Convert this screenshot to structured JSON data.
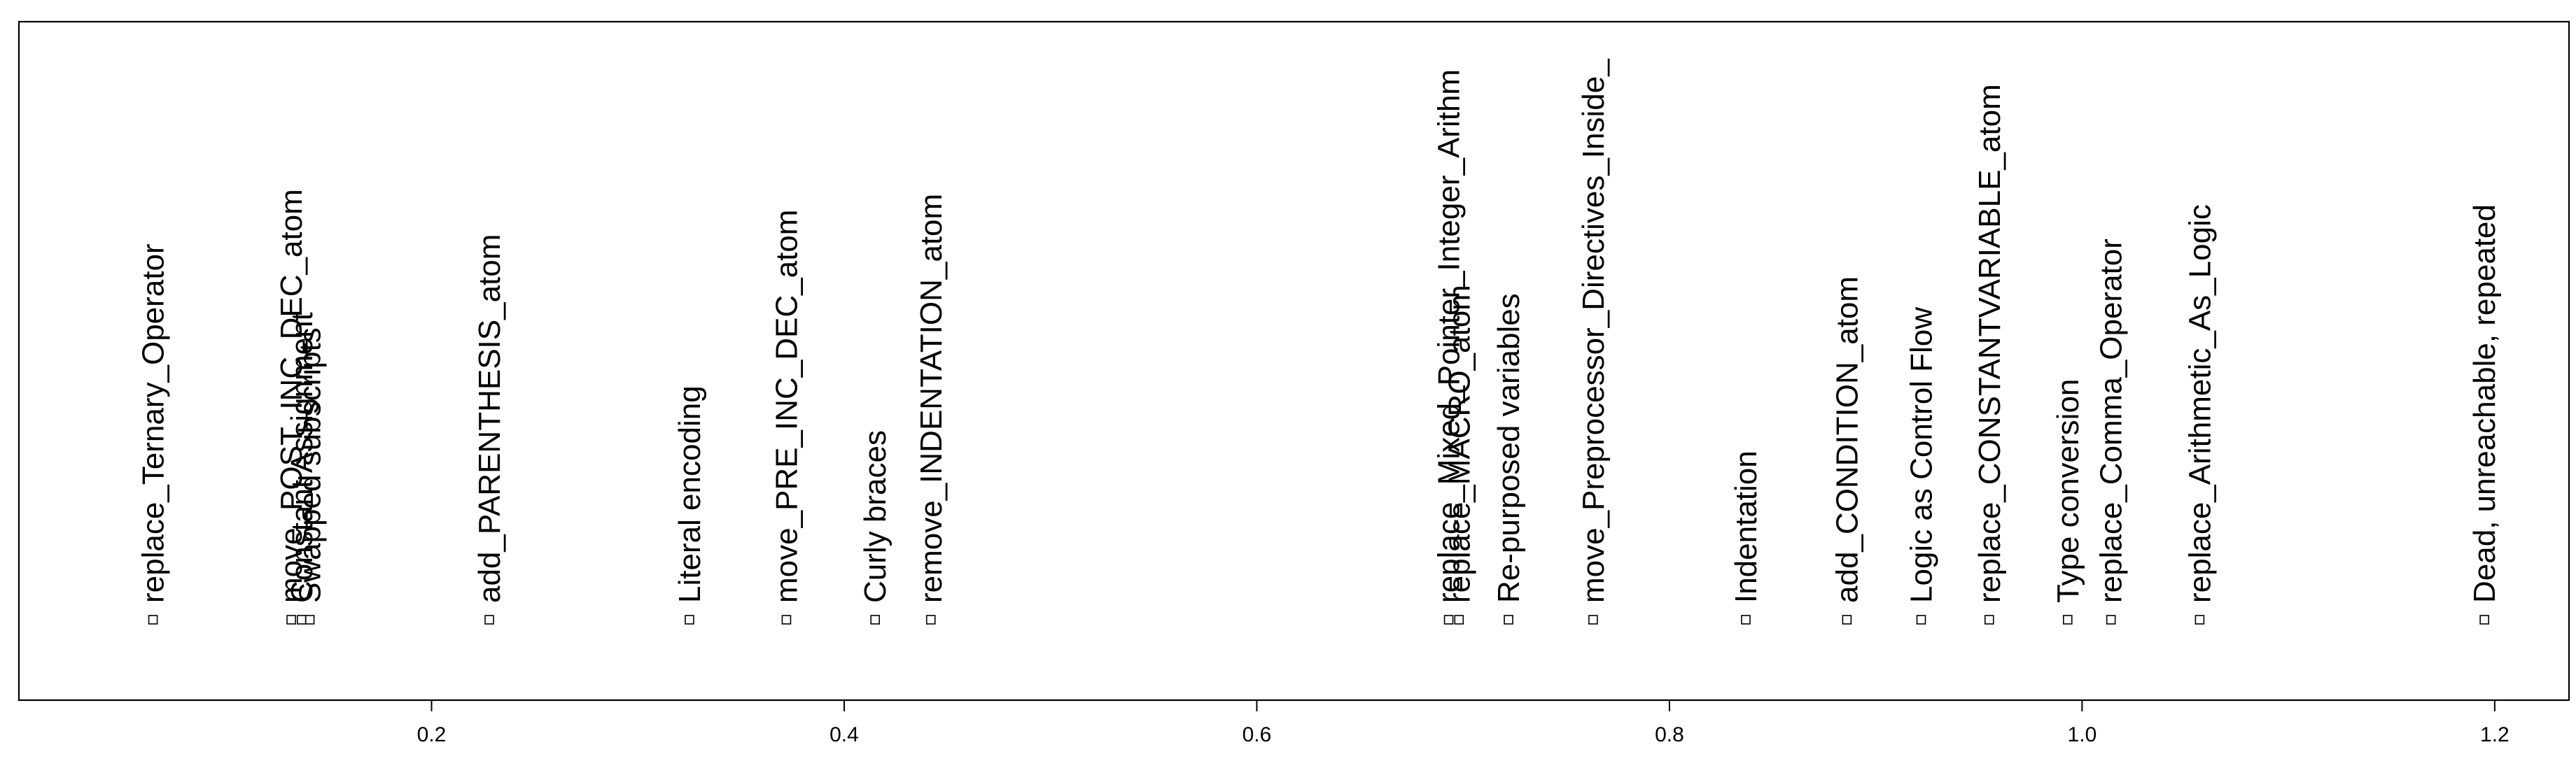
{
  "chart_data": {
    "type": "scatter",
    "title": "",
    "xlabel": "",
    "ylabel": "",
    "xlim": [
      0.0,
      1.236
    ],
    "grid": false,
    "legend": "none",
    "x_ticks": [
      {
        "value": 0.2,
        "label": "0.2"
      },
      {
        "value": 0.4,
        "label": "0.4"
      },
      {
        "value": 0.6,
        "label": "0.6"
      },
      {
        "value": 0.8,
        "label": "0.8"
      },
      {
        "value": 1.0,
        "label": "1.0"
      },
      {
        "value": 1.2,
        "label": "1.2"
      }
    ],
    "points": [
      {
        "x": 0.065,
        "label": "replace_Ternary_Operator"
      },
      {
        "x": 0.132,
        "label": "move_POST_INC_DEC_atom"
      },
      {
        "x": 0.137,
        "label": "Constant Assignment"
      },
      {
        "x": 0.141,
        "label": "Swapped subscripts"
      },
      {
        "x": 0.228,
        "label": "add_PARENTHESIS_atom"
      },
      {
        "x": 0.325,
        "label": "Literal encoding"
      },
      {
        "x": 0.372,
        "label": "move_PRE_INC_DEC_atom"
      },
      {
        "x": 0.415,
        "label": "Curly braces"
      },
      {
        "x": 0.442,
        "label": "remove_INDENTATION_atom"
      },
      {
        "x": 0.693,
        "label": "replace_Mixed_Pointer_Integer_Arithm"
      },
      {
        "x": 0.698,
        "label": "replace_MACRO_atom"
      },
      {
        "x": 0.722,
        "label": "Re-purposed variables"
      },
      {
        "x": 0.763,
        "label": "move_Preprocessor_Directives_Inside_"
      },
      {
        "x": 0.837,
        "label": "Indentation"
      },
      {
        "x": 0.886,
        "label": "add_CONDITION_atom"
      },
      {
        "x": 0.922,
        "label": "Logic as Control Flow"
      },
      {
        "x": 0.955,
        "label": "replace_CONSTANTVARIABLE_atom"
      },
      {
        "x": 0.993,
        "label": "Type conversion"
      },
      {
        "x": 1.014,
        "label": "replace_Comma_Operator"
      },
      {
        "x": 1.057,
        "label": "replace_Arithmetic_As_Logic"
      },
      {
        "x": 1.195,
        "label": "Dead, unreachable, repeated"
      }
    ]
  }
}
